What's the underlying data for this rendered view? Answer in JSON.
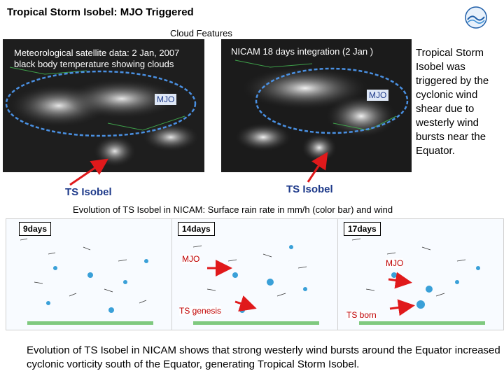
{
  "title": "Tropical Storm  Isobel: MJO Triggered",
  "cloud_header": "Cloud Features",
  "left_image": {
    "caption_line1": "Meteorological satellite data: 2 Jan, 2007",
    "caption_line2": "black body temperature showing clouds",
    "mjo_label": "MJO",
    "ts_label": "TS Isobel"
  },
  "right_image": {
    "caption": "NICAM 18 days integration  (2 Jan )",
    "mjo_label": "MJO",
    "ts_label": "TS Isobel"
  },
  "side_text": "Tropical Storm Isobel was triggered by the cyclonic wind shear due to westerly wind bursts near the Equator.",
  "evolution_header": "Evolution of TS Isobel in NICAM: Surface rain rate in mm/h (color bar) and wind",
  "panels": [
    {
      "day": "9days"
    },
    {
      "day": "14days",
      "mjo_label": "MJO",
      "event_label": "TS genesis"
    },
    {
      "day": "17days",
      "mjo_label": "MJO",
      "event_label": "TS born"
    }
  ],
  "bottom_text": "Evolution of TS Isobel in NICAM shows that strong westerly wind bursts around the Equator increased cyclonic vorticity south of the Equator, generating Tropical Storm Isobel.",
  "colors": {
    "mjo_ellipse": "#4a90e2",
    "arrow_red": "#e0191b",
    "label_blue": "#1e3a8a"
  },
  "icons": {
    "logo": "organization-logo-icon"
  }
}
